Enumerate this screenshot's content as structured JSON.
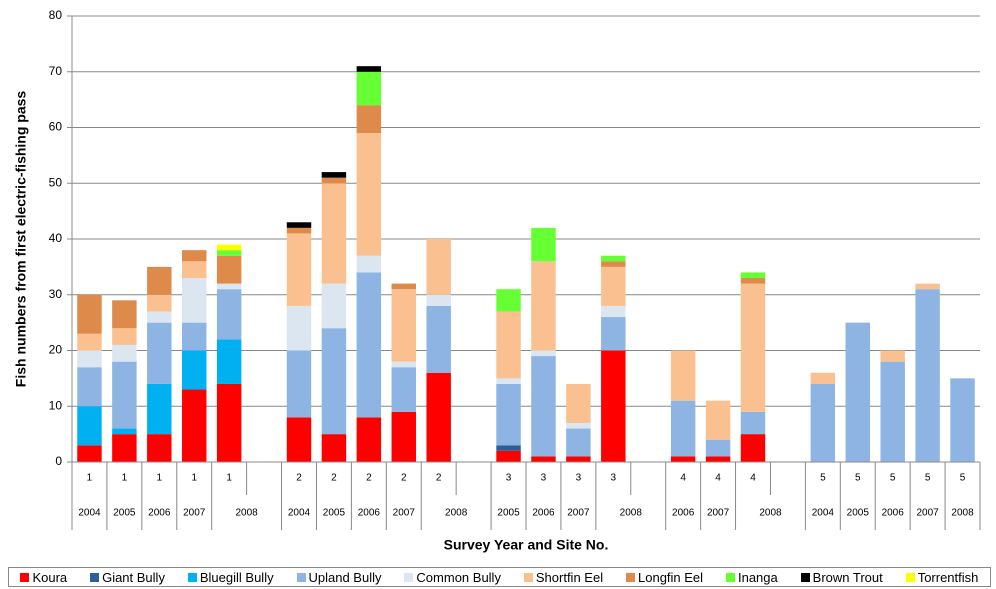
{
  "chart_data": {
    "type": "stacked_bar",
    "y_label": "Fish numbers from first electric-fishing pass",
    "x_label": "Survey Year and Site No.",
    "categories": [
      "1",
      "1",
      "1",
      "1",
      "1",
      null,
      "2",
      "2",
      "2",
      "2",
      "2",
      null,
      "3",
      "3",
      "3",
      "3",
      null,
      "4",
      "4",
      "4",
      null,
      "5",
      "5",
      "5",
      "5",
      "5"
    ],
    "years": [
      "2004",
      "2005",
      "2006",
      "2007",
      "2008",
      null,
      "2004",
      "2005",
      "2006",
      "2007",
      "2008",
      null,
      "2005",
      "2006",
      "2007",
      "2008",
      null,
      "2006",
      "2007",
      "2008",
      null,
      "2004",
      "2005",
      "2006",
      "2007",
      "2008"
    ],
    "ylim": [
      0,
      80
    ],
    "yticks": [
      0,
      10,
      20,
      30,
      40,
      50,
      60,
      70,
      80
    ],
    "grid": true,
    "legend": "bottom",
    "series": [
      {
        "name": "Koura",
        "color": "#ff0000",
        "values": [
          3,
          5,
          5,
          13,
          14,
          null,
          8,
          5,
          8,
          9,
          16,
          null,
          2,
          1,
          1,
          20,
          null,
          1,
          1,
          5,
          null,
          0,
          0,
          0,
          0,
          0
        ]
      },
      {
        "name": "Giant Bully",
        "color": "#2e5f94",
        "values": [
          0,
          0,
          0,
          0,
          0,
          null,
          0,
          0,
          0,
          0,
          0,
          null,
          1,
          0,
          0,
          0,
          null,
          0,
          0,
          0,
          null,
          0,
          0,
          0,
          0,
          0
        ]
      },
      {
        "name": "Bluegill Bully",
        "color": "#00b0f0",
        "values": [
          7,
          1,
          9,
          7,
          8,
          null,
          0,
          0,
          0,
          0,
          0,
          null,
          0,
          0,
          0,
          0,
          null,
          0,
          0,
          0,
          null,
          0,
          0,
          0,
          0,
          0
        ]
      },
      {
        "name": "Upland Bully",
        "color": "#8db4e2",
        "values": [
          7,
          12,
          11,
          5,
          9,
          null,
          12,
          19,
          26,
          8,
          12,
          null,
          11,
          18,
          5,
          6,
          null,
          10,
          3,
          4,
          null,
          14,
          25,
          18,
          31,
          15
        ]
      },
      {
        "name": "Common Bully",
        "color": "#dce6f1",
        "values": [
          3,
          3,
          2,
          8,
          1,
          null,
          8,
          8,
          3,
          1,
          2,
          null,
          1,
          1,
          1,
          2,
          null,
          0,
          0,
          0,
          null,
          0,
          0,
          0,
          0,
          0
        ]
      },
      {
        "name": "Shortfin Eel",
        "color": "#fac090",
        "values": [
          3,
          3,
          3,
          3,
          0,
          null,
          13,
          18,
          22,
          13,
          10,
          null,
          12,
          16,
          7,
          7,
          null,
          9,
          7,
          23,
          null,
          2,
          0,
          2,
          1,
          0
        ]
      },
      {
        "name": "Longfin Eel",
        "color": "#dd8a4a",
        "values": [
          7,
          5,
          5,
          2,
          5,
          null,
          1,
          1,
          5,
          1,
          0,
          null,
          0,
          0,
          0,
          1,
          null,
          0,
          0,
          1,
          null,
          0,
          0,
          0,
          0,
          0
        ]
      },
      {
        "name": "Inanga",
        "color": "#66ff33",
        "values": [
          0,
          0,
          0,
          0,
          1,
          null,
          0,
          0,
          6,
          0,
          0,
          null,
          4,
          6,
          0,
          1,
          null,
          0,
          0,
          1,
          null,
          0,
          0,
          0,
          0,
          0
        ]
      },
      {
        "name": "Brown Trout",
        "color": "#000000",
        "values": [
          0,
          0,
          0,
          0,
          0,
          null,
          1,
          1,
          1,
          0,
          0,
          null,
          0,
          0,
          0,
          0,
          null,
          0,
          0,
          0,
          null,
          0,
          0,
          0,
          0,
          0
        ]
      },
      {
        "name": "Torrentfish",
        "color": "#ffff00",
        "values": [
          0,
          0,
          0,
          0,
          1,
          null,
          0,
          0,
          0,
          0,
          0,
          null,
          0,
          0,
          0,
          0,
          null,
          0,
          0,
          0,
          null,
          0,
          0,
          0,
          0,
          0
        ]
      }
    ]
  }
}
